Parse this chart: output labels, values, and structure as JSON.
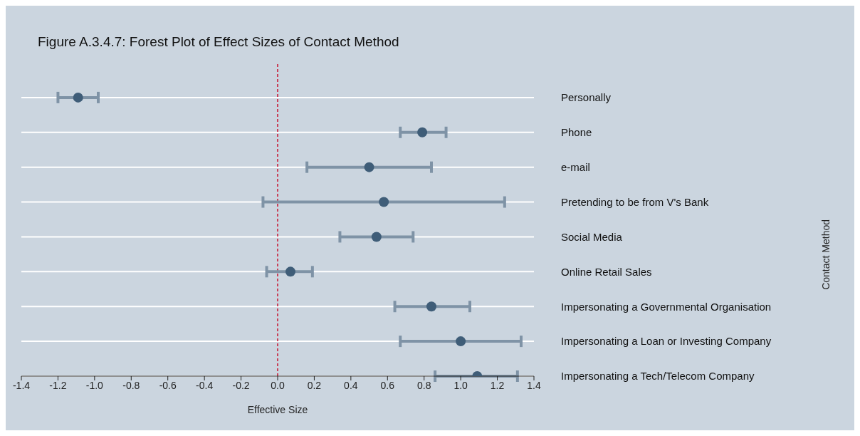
{
  "chart_data": {
    "type": "scatter",
    "title": "Figure A.3.4.7: Forest Plot of Effect Sizes of Contact Method",
    "xlabel": "Effective Size",
    "ylabel": "Contact Method",
    "orientation": "horizontal",
    "categories": [
      "Personally",
      "Phone",
      "e-mail",
      "Pretending to be from V's Bank",
      "Social Media",
      "Online Retail Sales",
      "Impersonating a Governmental Organisation",
      "Impersonating a Loan or Investing Company",
      "Impersonating a Tech/Telecom Company"
    ],
    "series": [
      {
        "color": "#3f5d78",
        "values": [
          -1.09,
          0.79,
          0.5,
          0.58,
          0.54,
          0.07,
          0.84,
          1.0,
          1.09
        ],
        "errors": [
          [
            -1.2,
            -0.98
          ],
          [
            0.67,
            0.92
          ],
          [
            0.16,
            0.84
          ],
          [
            -0.08,
            1.24
          ],
          [
            0.34,
            0.74
          ],
          [
            -0.06,
            0.19
          ],
          [
            0.64,
            1.05
          ],
          [
            0.67,
            1.33
          ],
          [
            0.86,
            1.31
          ]
        ]
      }
    ],
    "xlim": [
      -1.4,
      1.4
    ],
    "xticks": [
      {
        "value": -1.4,
        "label": "-1.4"
      },
      {
        "value": -1.2,
        "label": "-1.2"
      },
      {
        "value": -1.0,
        "label": "-1.0"
      },
      {
        "value": -0.8,
        "label": "-0.8"
      },
      {
        "value": -0.6,
        "label": "-0.6"
      },
      {
        "value": -0.4,
        "label": "-0.4"
      },
      {
        "value": -0.2,
        "label": "-0.2"
      },
      {
        "value": 0,
        "label": "0.0"
      },
      {
        "value": 0.2,
        "label": "0.2"
      },
      {
        "value": 0.4,
        "label": "0.4"
      },
      {
        "value": 0.6,
        "label": "0.6"
      },
      {
        "value": 0.8,
        "label": "0.8"
      },
      {
        "value": 1.0,
        "label": "1.0"
      },
      {
        "value": 1.2,
        "label": "1.2"
      },
      {
        "value": 1.4,
        "label": "1.4"
      }
    ],
    "ref_lines": [
      {
        "axis": "x",
        "value": 0,
        "color": "#c8102e",
        "line_style": "dashed"
      }
    ],
    "grid": "y",
    "marker": "circle"
  }
}
